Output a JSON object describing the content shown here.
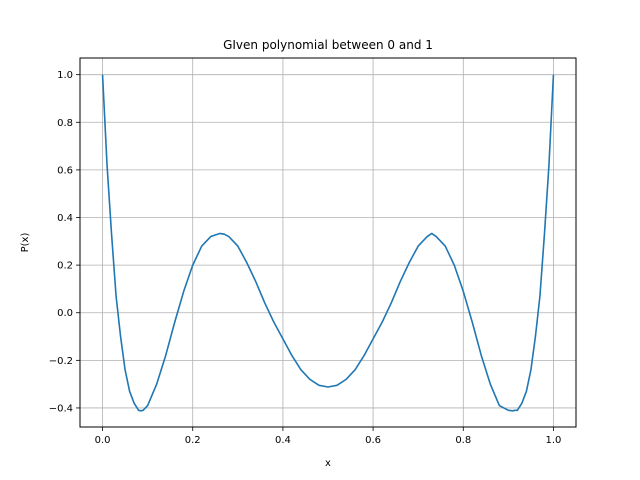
{
  "chart_data": {
    "type": "line",
    "title": "GIven polynomial between 0 and 1",
    "xlabel": "x",
    "ylabel": "P(x)",
    "xlim": [
      -0.05,
      1.05
    ],
    "ylim": [
      -0.48,
      1.07
    ],
    "xticks": [
      0.0,
      0.2,
      0.4,
      0.6,
      0.8,
      1.0
    ],
    "xtick_labels": [
      "0.0",
      "0.2",
      "0.4",
      "0.6",
      "0.8",
      "1.0"
    ],
    "yticks": [
      -0.4,
      -0.2,
      0.0,
      0.2,
      0.4,
      0.6,
      0.8,
      1.0
    ],
    "ytick_labels": [
      "−0.4",
      "−0.2",
      "0.0",
      "0.2",
      "0.4",
      "0.6",
      "0.8",
      "1.0"
    ],
    "grid": true,
    "series": [
      {
        "color": "#1f77b4",
        "x": [
          0.0,
          0.01,
          0.02,
          0.03,
          0.04,
          0.05,
          0.06,
          0.07,
          0.08,
          0.085,
          0.09,
          0.1,
          0.12,
          0.14,
          0.16,
          0.18,
          0.2,
          0.22,
          0.24,
          0.26,
          0.27,
          0.28,
          0.3,
          0.32,
          0.34,
          0.36,
          0.38,
          0.4,
          0.42,
          0.44,
          0.46,
          0.48,
          0.5,
          0.52,
          0.54,
          0.56,
          0.58,
          0.6,
          0.62,
          0.64,
          0.66,
          0.68,
          0.7,
          0.72,
          0.73,
          0.74,
          0.76,
          0.78,
          0.8,
          0.82,
          0.84,
          0.86,
          0.88,
          0.9,
          0.91,
          0.915,
          0.92,
          0.93,
          0.94,
          0.95,
          0.96,
          0.97,
          0.98,
          0.99,
          1.0
        ],
        "y": [
          1.0,
          0.62,
          0.33,
          0.07,
          -0.1,
          -0.24,
          -0.33,
          -0.38,
          -0.41,
          -0.412,
          -0.41,
          -0.39,
          -0.3,
          -0.18,
          -0.04,
          0.09,
          0.2,
          0.28,
          0.32,
          0.333,
          0.33,
          0.32,
          0.28,
          0.21,
          0.13,
          0.04,
          -0.04,
          -0.11,
          -0.18,
          -0.24,
          -0.28,
          -0.305,
          -0.312,
          -0.305,
          -0.28,
          -0.24,
          -0.18,
          -0.11,
          -0.04,
          0.04,
          0.13,
          0.21,
          0.28,
          0.32,
          0.333,
          0.32,
          0.28,
          0.2,
          0.09,
          -0.04,
          -0.18,
          -0.3,
          -0.39,
          -0.41,
          -0.412,
          -0.41,
          -0.41,
          -0.38,
          -0.33,
          -0.24,
          -0.1,
          0.07,
          0.33,
          0.62,
          1.0
        ]
      }
    ]
  }
}
